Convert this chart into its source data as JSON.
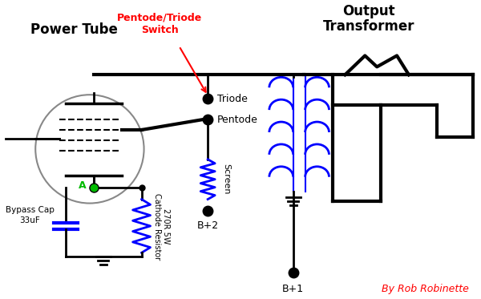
{
  "bg_color": "#ffffff",
  "label_power_tube": "Power Tube",
  "label_output_transformer": "Output\nTransformer",
  "label_switch": "Pentode/Triode\nSwitch",
  "label_triode": "Triode",
  "label_pentode": "Pentode",
  "label_screen": "Screen",
  "label_b2": "B+2",
  "label_b1": "B+1",
  "label_bypass": "Bypass Cap\n33uF",
  "label_cathode_resistor": "270R 5W\nCathode Resistor",
  "label_author": "By Rob Robinette",
  "red_color": "#ff0000",
  "blue_color": "#0000ff",
  "green_color": "#00bb00",
  "black_color": "#000000"
}
